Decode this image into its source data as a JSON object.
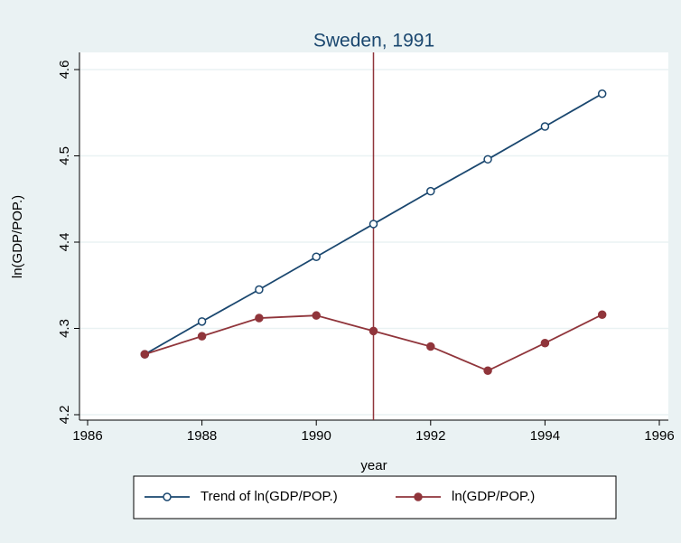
{
  "chart_data": {
    "type": "line",
    "title": "Sweden, 1991",
    "x_label": "year",
    "y_label": "ln(GDP/POP.)",
    "x": [
      1987,
      1988,
      1989,
      1990,
      1991,
      1992,
      1993,
      1994,
      1995
    ],
    "series": [
      {
        "name": "Trend of ln(GDP/POP.)",
        "color": "#1a476f",
        "marker": "hollow",
        "values": [
          4.27,
          4.308,
          4.345,
          4.383,
          4.421,
          4.459,
          4.496,
          4.534,
          4.572
        ]
      },
      {
        "name": "ln(GDP/POP.)",
        "color": "#90353b",
        "marker": "filled",
        "values": [
          4.27,
          4.291,
          4.312,
          4.315,
          4.297,
          4.279,
          4.251,
          4.283,
          4.316
        ]
      }
    ],
    "xline": 1991,
    "xline_color": "#90353b",
    "xlim": [
      1986,
      1996
    ],
    "xticks": [
      1986,
      1988,
      1990,
      1992,
      1994,
      1996
    ],
    "ylim": [
      4.2,
      4.6
    ],
    "yticks": [
      4.2,
      4.3,
      4.4,
      4.5,
      4.6
    ],
    "grid": true,
    "legend": "bottom"
  }
}
